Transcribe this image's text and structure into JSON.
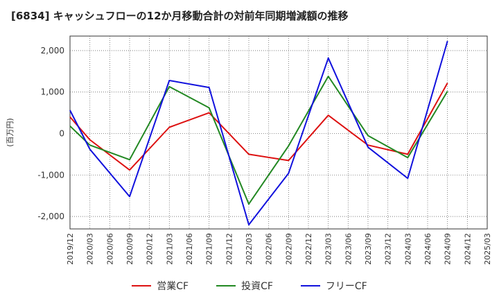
{
  "chart_data": {
    "type": "line",
    "title": "[6834]  キャッシュフローの12か月移動合計の対前年同期増減額の推移",
    "ylabel": "(百万円)",
    "xlabel": "",
    "ylim": [
      -2300,
      2350
    ],
    "yticks": [
      -2000,
      -1000,
      0,
      1000,
      2000
    ],
    "ytick_labels": [
      "-2,000",
      "-1,000",
      "0",
      "1,000",
      "2,000"
    ],
    "xticks": [
      "2019/12",
      "2020/03",
      "2020/06",
      "2020/09",
      "2020/12",
      "2021/03",
      "2021/06",
      "2021/09",
      "2021/12",
      "2022/03",
      "2022/06",
      "2022/09",
      "2022/12",
      "2023/03",
      "2023/06",
      "2023/09",
      "2023/12",
      "2024/03",
      "2024/06",
      "2024/09",
      "2024/12",
      "2025/03"
    ],
    "grid": true,
    "legend_position": "bottom",
    "series": [
      {
        "name": "営業CF",
        "color": "#dd1111",
        "x": [
          "2019/12",
          "2020/03",
          "2020/09",
          "2021/03",
          "2021/09",
          "2022/03",
          "2022/09",
          "2023/03",
          "2023/09",
          "2024/03",
          "2024/09"
        ],
        "values": [
          400,
          -150,
          -880,
          150,
          500,
          -500,
          -650,
          440,
          -280,
          -500,
          1220
        ]
      },
      {
        "name": "投資CF",
        "color": "#228822",
        "x": [
          "2019/12",
          "2020/03",
          "2020/09",
          "2021/03",
          "2021/09",
          "2022/03",
          "2022/09",
          "2023/03",
          "2023/09",
          "2024/03",
          "2024/09"
        ],
        "values": [
          180,
          -280,
          -630,
          1130,
          620,
          -1700,
          -300,
          1380,
          -50,
          -580,
          1020
        ]
      },
      {
        "name": "フリーCF",
        "color": "#1111dd",
        "x": [
          "2019/12",
          "2020/03",
          "2020/09",
          "2021/03",
          "2021/09",
          "2022/03",
          "2022/09",
          "2023/03",
          "2023/09",
          "2024/03",
          "2024/09"
        ],
        "values": [
          560,
          -380,
          -1520,
          1280,
          1110,
          -2200,
          -960,
          1820,
          -330,
          -1080,
          2230
        ]
      }
    ]
  }
}
